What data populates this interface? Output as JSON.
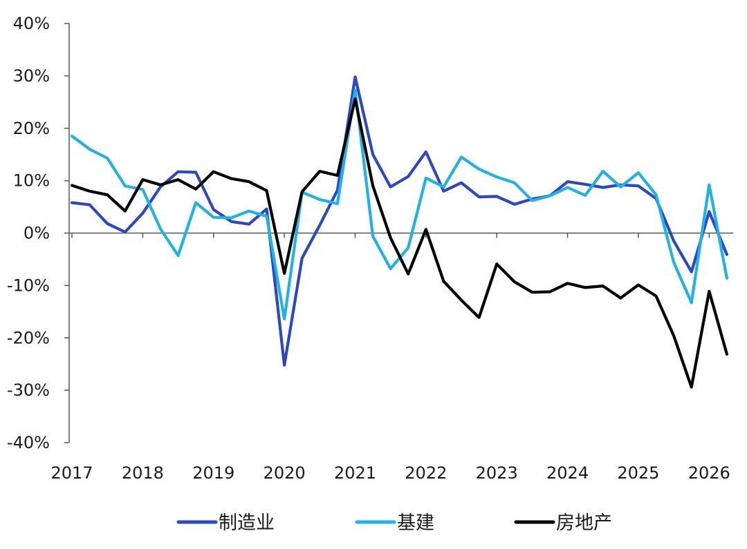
{
  "chart_data": {
    "type": "line",
    "title": "",
    "xlabel": "",
    "ylabel": "",
    "x_ticks": [
      "2017",
      "2018",
      "2019",
      "2020",
      "2021",
      "2022",
      "2023",
      "2024",
      "2025",
      "2026"
    ],
    "y_ticks": [
      "40%",
      "30%",
      "20%",
      "10%",
      "0%",
      "-10%",
      "-20%",
      "-30%",
      "-40%"
    ],
    "ylim": [
      -40,
      40
    ],
    "xlim": [
      2017,
      2026.3
    ],
    "grid": false,
    "legend_position": "bottom",
    "series": [
      {
        "name": "制造业",
        "color": "#2b47c6",
        "points": [
          [
            2017.0,
            5.8
          ],
          [
            2017.25,
            5.4
          ],
          [
            2017.5,
            1.8
          ],
          [
            2017.75,
            0.2
          ],
          [
            2018.0,
            3.8
          ],
          [
            2018.25,
            8.8
          ],
          [
            2018.5,
            11.7
          ],
          [
            2018.75,
            11.6
          ],
          [
            2019.0,
            4.5
          ],
          [
            2019.25,
            2.2
          ],
          [
            2019.5,
            1.7
          ],
          [
            2019.75,
            4.6
          ],
          [
            2020.0,
            -25.2
          ],
          [
            2020.25,
            -4.8
          ],
          [
            2020.5,
            1.5
          ],
          [
            2020.75,
            8.2
          ],
          [
            2021.0,
            29.8
          ],
          [
            2021.25,
            15.0
          ],
          [
            2021.5,
            8.8
          ],
          [
            2021.75,
            10.8
          ],
          [
            2022.0,
            15.5
          ],
          [
            2022.25,
            8.0
          ],
          [
            2022.5,
            9.6
          ],
          [
            2022.75,
            6.9
          ],
          [
            2023.0,
            7.0
          ],
          [
            2023.25,
            5.5
          ],
          [
            2023.5,
            6.5
          ],
          [
            2023.75,
            7.1
          ],
          [
            2024.0,
            9.8
          ],
          [
            2024.25,
            9.3
          ],
          [
            2024.5,
            8.7
          ],
          [
            2024.75,
            9.2
          ],
          [
            2025.0,
            9.0
          ],
          [
            2025.25,
            6.6
          ],
          [
            2025.5,
            -1.5
          ],
          [
            2025.75,
            -7.4
          ],
          [
            2026.0,
            4.1
          ],
          [
            2026.25,
            -4.1
          ]
        ]
      },
      {
        "name": "基建",
        "color": "#1fb2e6",
        "points": [
          [
            2017.0,
            18.5
          ],
          [
            2017.25,
            16.0
          ],
          [
            2017.5,
            14.3
          ],
          [
            2017.75,
            9.0
          ],
          [
            2018.0,
            8.3
          ],
          [
            2018.25,
            0.8
          ],
          [
            2018.5,
            -4.3
          ],
          [
            2018.75,
            5.8
          ],
          [
            2019.0,
            3.0
          ],
          [
            2019.25,
            2.9
          ],
          [
            2019.5,
            4.2
          ],
          [
            2019.75,
            3.2
          ],
          [
            2020.0,
            -16.4
          ],
          [
            2020.25,
            7.8
          ],
          [
            2020.5,
            6.4
          ],
          [
            2020.75,
            5.6
          ],
          [
            2021.0,
            27.3
          ],
          [
            2021.25,
            -0.6
          ],
          [
            2021.5,
            -6.8
          ],
          [
            2021.75,
            -2.8
          ],
          [
            2022.0,
            10.5
          ],
          [
            2022.25,
            8.8
          ],
          [
            2022.5,
            14.5
          ],
          [
            2022.75,
            12.2
          ],
          [
            2023.0,
            10.7
          ],
          [
            2023.25,
            9.6
          ],
          [
            2023.5,
            6.2
          ],
          [
            2023.75,
            7.1
          ],
          [
            2024.0,
            8.7
          ],
          [
            2024.25,
            7.2
          ],
          [
            2024.5,
            11.8
          ],
          [
            2024.75,
            8.8
          ],
          [
            2025.0,
            11.5
          ],
          [
            2025.25,
            7.3
          ],
          [
            2025.5,
            -5.6
          ],
          [
            2025.75,
            -13.3
          ],
          [
            2026.0,
            9.2
          ],
          [
            2026.25,
            -8.6
          ]
        ]
      },
      {
        "name": "房地产",
        "color": "#000000",
        "points": [
          [
            2017.0,
            9.1
          ],
          [
            2017.25,
            8.0
          ],
          [
            2017.5,
            7.3
          ],
          [
            2017.75,
            4.2
          ],
          [
            2018.0,
            10.2
          ],
          [
            2018.25,
            9.2
          ],
          [
            2018.5,
            10.2
          ],
          [
            2018.75,
            8.4
          ],
          [
            2019.0,
            11.7
          ],
          [
            2019.25,
            10.4
          ],
          [
            2019.5,
            9.8
          ],
          [
            2019.75,
            8.1
          ],
          [
            2020.0,
            -7.7
          ],
          [
            2020.25,
            7.9
          ],
          [
            2020.5,
            11.8
          ],
          [
            2020.75,
            11.0
          ],
          [
            2021.0,
            25.6
          ],
          [
            2021.25,
            9.0
          ],
          [
            2021.5,
            -0.9
          ],
          [
            2021.75,
            -7.8
          ],
          [
            2022.0,
            0.7
          ],
          [
            2022.25,
            -9.2
          ],
          [
            2022.5,
            -12.8
          ],
          [
            2022.75,
            -16.1
          ],
          [
            2023.0,
            -5.9
          ],
          [
            2023.25,
            -9.3
          ],
          [
            2023.5,
            -11.3
          ],
          [
            2023.75,
            -11.2
          ],
          [
            2024.0,
            -9.6
          ],
          [
            2024.25,
            -10.4
          ],
          [
            2024.5,
            -10.1
          ],
          [
            2024.75,
            -12.4
          ],
          [
            2025.0,
            -9.9
          ],
          [
            2025.25,
            -12.0
          ],
          [
            2025.5,
            -19.6
          ],
          [
            2025.75,
            -29.4
          ],
          [
            2026.0,
            -11.1
          ],
          [
            2026.25,
            -23.1
          ]
        ]
      }
    ]
  }
}
